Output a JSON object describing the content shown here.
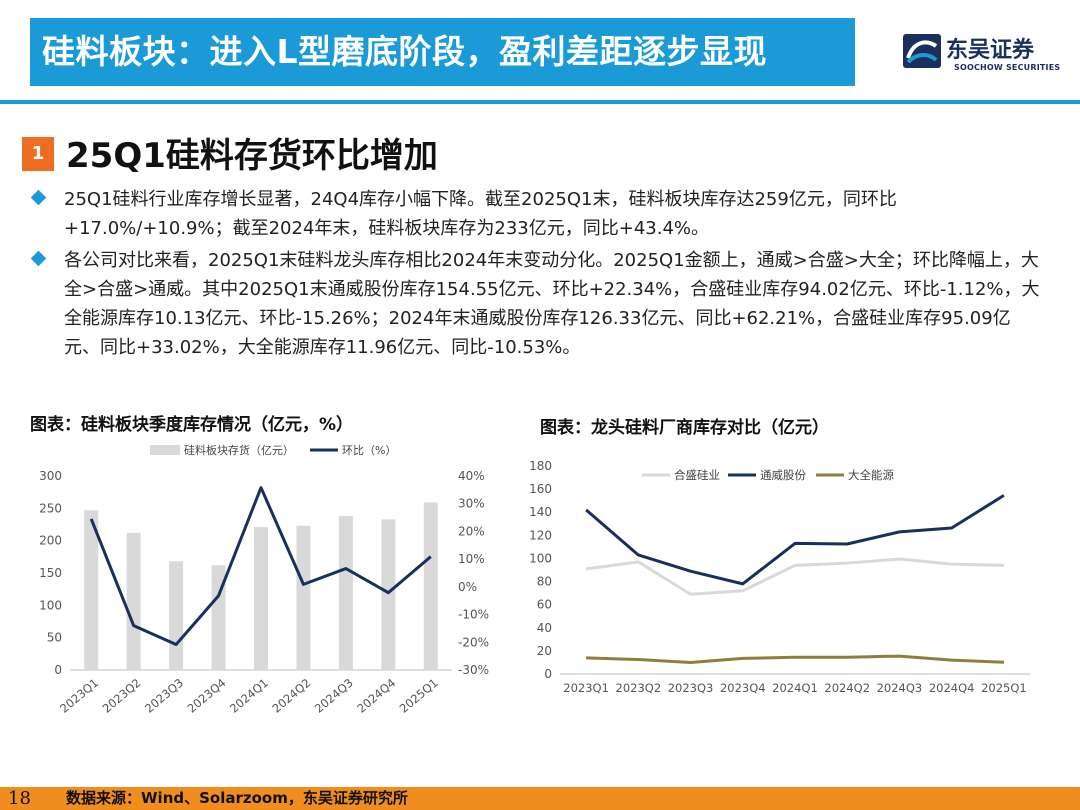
{
  "header": {
    "title": "硅料板块：进入L型磨底阶段，盈利差距逐步显现",
    "logo_name": "东吴证券",
    "logo_en": "SOOCHOW SECURITIES",
    "accent": "#1a9bd7"
  },
  "section": {
    "number": "1",
    "title": "25Q1硅料存货环比增加"
  },
  "bullets": [
    "25Q1硅料行业库存增长显著，24Q4库存小幅下降。截至2025Q1末，硅料板块库存达259亿元，同环比+17.0%/+10.9%；截至2024年末，硅料板块库存为233亿元，同比+43.4%。",
    "各公司对比来看，2025Q1末硅料龙头库存相比2024年末变动分化。2025Q1金额上，通威>合盛>大全；环比降幅上，大全>合盛>通威。其中2025Q1末通威股份库存154.55亿元、环比+22.34%，合盛硅业库存94.02亿元、环比-1.12%，大全能源库存10.13亿元、环比-15.26%；2024年末通威股份库存126.33亿元、同比+62.21%，合盛硅业库存95.09亿元、同比+33.02%，大全能源库存11.96亿元、同比-10.53%。"
  ],
  "chart_titles": {
    "left": "图表：硅料板块季度库存情况（亿元，%）",
    "right": "图表：龙头硅料厂商库存对比（亿元）"
  },
  "chart_data": [
    {
      "type": "bar",
      "title": "图表：硅料板块季度库存情况（亿元，%）",
      "categories": [
        "2023Q1",
        "2023Q2",
        "2023Q3",
        "2023Q4",
        "2024Q1",
        "2024Q2",
        "2024Q3",
        "2024Q4",
        "2025Q1"
      ],
      "series": [
        {
          "name": "硅料板块存货（亿元）",
          "kind": "bar",
          "axis": "left",
          "color": "#d9d9d9",
          "values": [
            247,
            212,
            168,
            162,
            221,
            223,
            238,
            233,
            259
          ]
        },
        {
          "name": "环比（%）",
          "kind": "line",
          "axis": "right",
          "color": "#1b2f5c",
          "values": [
            24.5,
            -14,
            -20.8,
            -3.2,
            35.8,
            0.9,
            6.6,
            -2.1,
            10.9
          ]
        }
      ],
      "ylim_left": [
        0,
        300
      ],
      "yticks_left": [
        "0",
        "50",
        "100",
        "150",
        "200",
        "250",
        "300"
      ],
      "ylim_right": [
        -30,
        40
      ],
      "yticks_right": [
        "-30%",
        "-20%",
        "-10%",
        "0%",
        "10%",
        "20%",
        "30%",
        "40%"
      ],
      "legend": "top-center",
      "grid": false
    },
    {
      "type": "line",
      "title": "图表：龙头硅料厂商库存对比（亿元）",
      "categories": [
        "2023Q1",
        "2023Q2",
        "2023Q3",
        "2023Q4",
        "2024Q1",
        "2024Q2",
        "2024Q3",
        "2024Q4",
        "2025Q1"
      ],
      "series": [
        {
          "name": "合盛硅业",
          "color": "#d9d9d9",
          "values": [
            91,
            97,
            69,
            72,
            94,
            96,
            99.5,
            95.09,
            94.02
          ]
        },
        {
          "name": "通威股份",
          "color": "#1b2f5c",
          "values": [
            142,
            103,
            89,
            78,
            113,
            112.5,
            123,
            126.33,
            154.55
          ]
        },
        {
          "name": "大全能源",
          "color": "#8c7f3d",
          "values": [
            14,
            12.5,
            10,
            13.5,
            14.5,
            14.5,
            15.5,
            11.96,
            10.13
          ]
        }
      ],
      "ylim": [
        0,
        180
      ],
      "yticks": [
        "0",
        "20",
        "40",
        "60",
        "80",
        "100",
        "120",
        "140",
        "160",
        "180"
      ],
      "legend": "top-center",
      "grid": false
    }
  ],
  "footer": {
    "page": "18",
    "source": "数据来源：Wind、Solarzoom，东吴证券研究所",
    "color": "#f08d1f"
  }
}
